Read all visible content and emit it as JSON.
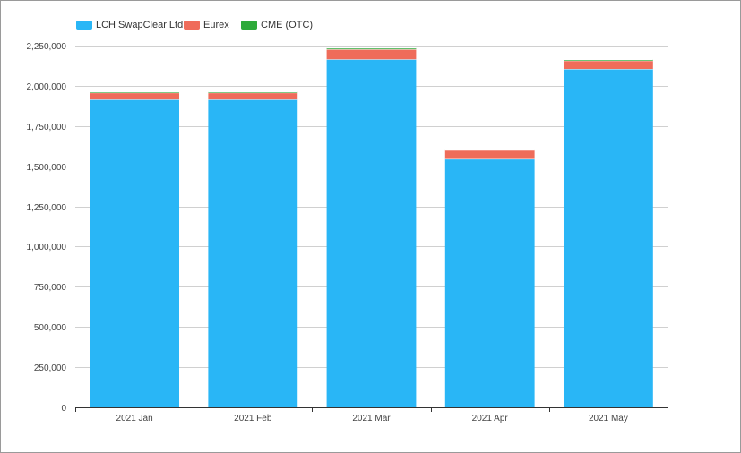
{
  "chart_data": {
    "type": "bar",
    "stacked": true,
    "categories": [
      "2021 Jan",
      "2021 Feb",
      "2021 Mar",
      "2021 Apr",
      "2021 May"
    ],
    "series": [
      {
        "name": "LCH SwapClear Ltd",
        "color": "#29b6f6",
        "values": [
          1915000,
          1915000,
          2165000,
          1545000,
          2105000
        ]
      },
      {
        "name": "Eurex",
        "color": "#ef6c5a",
        "values": [
          42000,
          42000,
          62000,
          55000,
          52000
        ]
      },
      {
        "name": "CME (OTC)",
        "color": "#2eaa3a",
        "values": [
          6000,
          6000,
          8000,
          5000,
          7000
        ]
      }
    ],
    "yticks": [
      "0",
      "250,000",
      "500,000",
      "750,000",
      "1,000,000",
      "1,250,000",
      "1,500,000",
      "1,750,000",
      "2,000,000",
      "2,250,000"
    ],
    "ylim": [
      0,
      2250000
    ],
    "grid": true,
    "legend_position": "top-left"
  }
}
